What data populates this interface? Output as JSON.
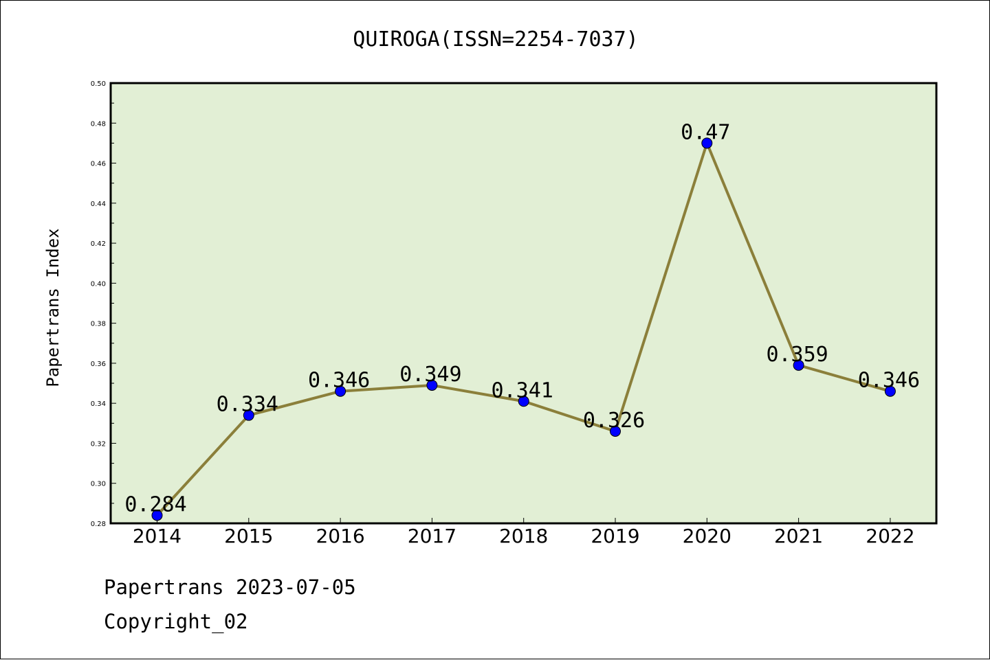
{
  "footer": {
    "line1": "Papertrans 2023-07-05",
    "line2": "Copyright_02"
  },
  "chart_data": {
    "type": "line",
    "title": "QUIROGA(ISSN=2254-7037)",
    "xlabel": "",
    "ylabel": "Papertrans Index",
    "categories": [
      "2014",
      "2015",
      "2016",
      "2017",
      "2018",
      "2019",
      "2020",
      "2021",
      "2022"
    ],
    "series": [
      {
        "values": [
          0.284,
          0.334,
          0.346,
          0.349,
          0.341,
          0.326,
          0.47,
          0.359,
          0.346
        ],
        "data_labels": [
          "0.284",
          "0.334",
          "0.346",
          "0.349",
          "0.341",
          "0.326",
          "0.47",
          "0.359",
          "0.346"
        ],
        "line_color": "#8b7f3a",
        "marker_color": "#0000ff"
      }
    ],
    "ylim": [
      0.28,
      0.5
    ],
    "yticks": [
      "0.28",
      "0.30",
      "0.32",
      "0.34",
      "0.36",
      "0.38",
      "0.40",
      "0.42",
      "0.44",
      "0.46",
      "0.48",
      "0.50"
    ],
    "plot_background": "#e2efd5",
    "grid": false,
    "legend": "none"
  }
}
